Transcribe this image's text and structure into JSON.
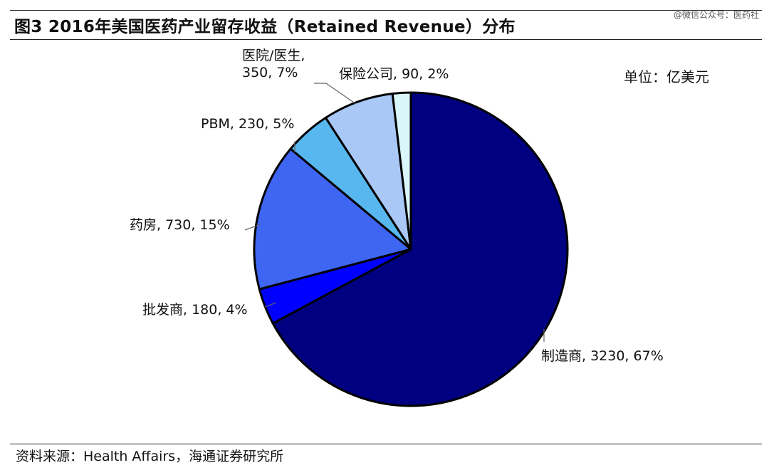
{
  "page": {
    "title": "图3  2016年美国医药产业留存收益（Retained Revenue）分布",
    "watermark": "@微信公众号：医药社",
    "unit": "单位：亿美元",
    "source": "资料来源：Health Affairs，海通证券研究所"
  },
  "chart_data": {
    "type": "pie",
    "unit": "亿美元",
    "slices": [
      {
        "name": "制造商",
        "value": 3230,
        "percent": "67%",
        "color": "#000080",
        "label_lines": [
          "制造商, 3230, 67%"
        ]
      },
      {
        "name": "批发商",
        "value": 180,
        "percent": "4%",
        "color": "#0000ff",
        "label_lines": [
          "批发商, 180, 4%"
        ]
      },
      {
        "name": "药房",
        "value": 730,
        "percent": "15%",
        "color": "#3f66f2",
        "label_lines": [
          "药房, 730, 15%"
        ]
      },
      {
        "name": "PBM",
        "value": 230,
        "percent": "5%",
        "color": "#58b7ef",
        "label_lines": [
          "PBM, 230, 5%"
        ]
      },
      {
        "name": "医院/医生",
        "value": 350,
        "percent": "7%",
        "color": "#a9c8f6",
        "label_lines": [
          "医院/医生,",
          "350, 7%"
        ]
      },
      {
        "name": "保险公司",
        "value": 90,
        "percent": "2%",
        "color": "#d9f6fb",
        "label_lines": [
          "保险公司, 90, 2%"
        ]
      }
    ]
  }
}
